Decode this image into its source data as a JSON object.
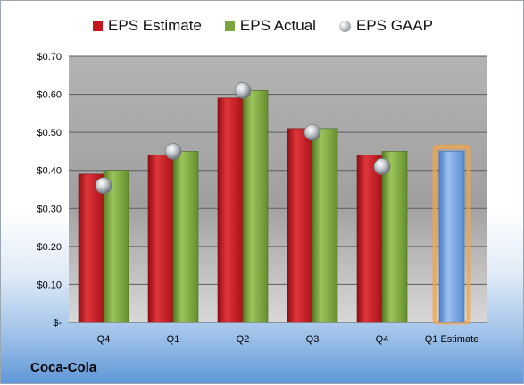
{
  "company": "Coca-Cola",
  "colors": {
    "estimate": "#c4171d",
    "actual": "#7aa43d",
    "gaap": "#b9c0c8",
    "forecast": "#6f9fe0",
    "forecast_glow": "#f5a445",
    "plot_bg": "#a9a9a9"
  },
  "legend": [
    {
      "label": "EPS Estimate",
      "icon": "red-square"
    },
    {
      "label": "EPS Actual",
      "icon": "green-square"
    },
    {
      "label": "EPS GAAP",
      "icon": "grey-sphere"
    }
  ],
  "chart_data": {
    "type": "bar",
    "categories": [
      "Q4",
      "Q1",
      "Q2",
      "Q3",
      "Q4",
      "Q1 Estimate"
    ],
    "series": [
      {
        "name": "EPS Estimate",
        "values": [
          0.39,
          0.44,
          0.59,
          0.51,
          0.44,
          null
        ]
      },
      {
        "name": "EPS Actual",
        "values": [
          0.4,
          0.45,
          0.61,
          0.51,
          0.45,
          null
        ]
      },
      {
        "name": "EPS GAAP",
        "values": [
          0.36,
          0.45,
          0.61,
          0.5,
          0.41,
          null
        ],
        "marker": "sphere"
      },
      {
        "name": "Q1 Estimate",
        "values": [
          null,
          null,
          null,
          null,
          null,
          0.45
        ]
      }
    ],
    "ylim": [
      0,
      0.7
    ],
    "yticks": [
      0,
      0.1,
      0.2,
      0.3,
      0.4,
      0.5,
      0.6,
      0.7
    ],
    "ytick_labels": [
      "$-",
      "$0.10",
      "$0.20",
      "$0.30",
      "$0.40",
      "$0.50",
      "$0.60",
      "$0.70"
    ],
    "grid": true,
    "legend_position": "top"
  }
}
